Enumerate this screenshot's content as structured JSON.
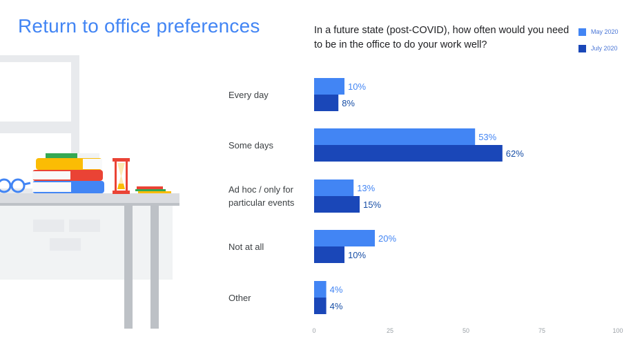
{
  "header": {
    "title": "Return to office preferences",
    "question": "In a future state (post-COVID), how often would you need to be in the office to do your work well?"
  },
  "colors": {
    "may": "#4285f4",
    "july": "#1a47b8",
    "axis_text": "#9aa0a6",
    "title": "#4285f4"
  },
  "chart_data": {
    "type": "bar",
    "orientation": "horizontal",
    "title": "In a future state (post-COVID), how often would you need to be in the office to do your work well?",
    "categories": [
      "Every day",
      "Some days",
      "Ad hoc / only for particular events",
      "Not at all",
      "Other"
    ],
    "category_lines": [
      [
        "Every day"
      ],
      [
        "Some days"
      ],
      [
        "Ad hoc / only for",
        "particular events"
      ],
      [
        "Not at all"
      ],
      [
        "Other"
      ]
    ],
    "series": [
      {
        "name": "May 2020",
        "values": [
          10,
          53,
          13,
          20,
          4
        ]
      },
      {
        "name": "July 2020",
        "values": [
          8,
          62,
          15,
          10,
          4
        ]
      }
    ],
    "value_suffix": "%",
    "xlim": [
      0,
      100
    ],
    "xticks": [
      0,
      25,
      50,
      75,
      100
    ],
    "legend_position": "top-right",
    "grid": false
  }
}
